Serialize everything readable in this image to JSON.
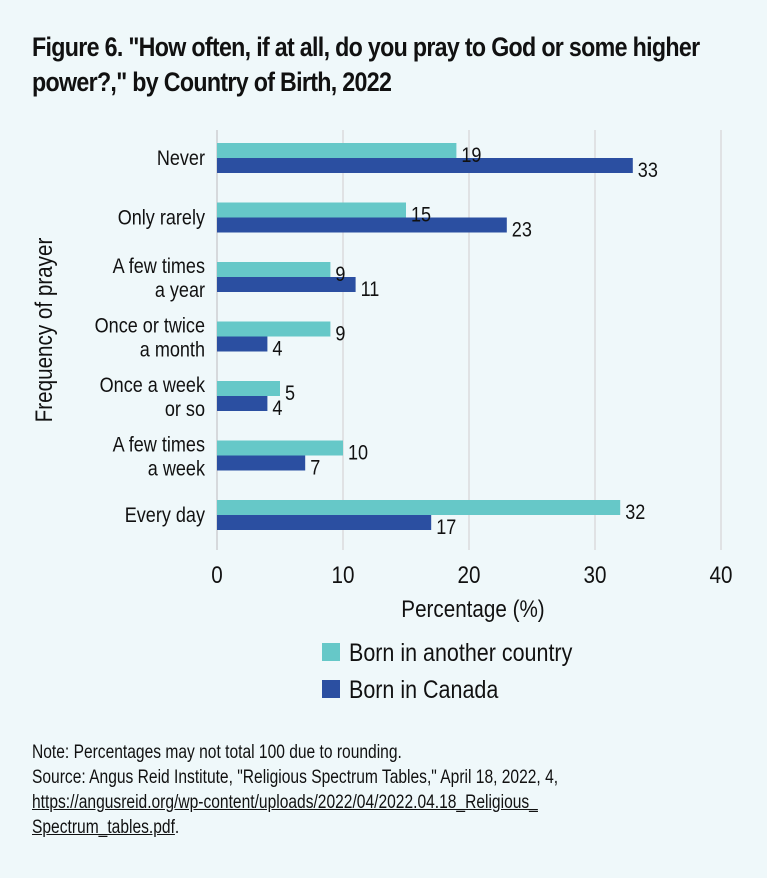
{
  "title": "Figure 6. \"How often, if at all, do you pray to God or some higher power?,\" by Country of Birth, 2022",
  "chart_data": {
    "type": "bar",
    "orientation": "horizontal",
    "title": "Figure 6. \"How often, if at all, do you pray to God or some higher power?,\" by Country of Birth, 2022",
    "categories": [
      [
        "Never"
      ],
      [
        "Only rarely"
      ],
      [
        "A few times",
        "a year"
      ],
      [
        "Once or twice",
        "a month"
      ],
      [
        "Once a week",
        "or so"
      ],
      [
        "A few times",
        "a week"
      ],
      [
        "Every day"
      ]
    ],
    "series": [
      {
        "name": "Born in another country",
        "color": "#66c8c8",
        "values": [
          19,
          15,
          9,
          9,
          5,
          10,
          32
        ]
      },
      {
        "name": "Born in Canada",
        "color": "#2b4fa1",
        "values": [
          33,
          23,
          11,
          4,
          4,
          7,
          17
        ]
      }
    ],
    "xlabel": "Percentage (%)",
    "ylabel": "Frequency of prayer",
    "xlim": [
      0,
      40
    ],
    "xticks": [
      0,
      10,
      20,
      30,
      40
    ],
    "grid": "vertical",
    "legend": "bottom-center",
    "data_labels": true
  },
  "notes": {
    "note": "Note: Percentages may not total 100 due to rounding.",
    "source": "Source: Angus Reid Institute, \"Religious Spectrum Tables,\" April 18, 2022, 4,",
    "link": "https://angusreid.org/wp-content/uploads/2022/04/2022.04.18_Religious_Spectrum_tables.pdf",
    "link_line1": "https://angusreid.org/wp-content/uploads/2022/04/2022.04.18_Religious_",
    "link_line2": "Spectrum_tables.pdf",
    "trailing": "."
  }
}
